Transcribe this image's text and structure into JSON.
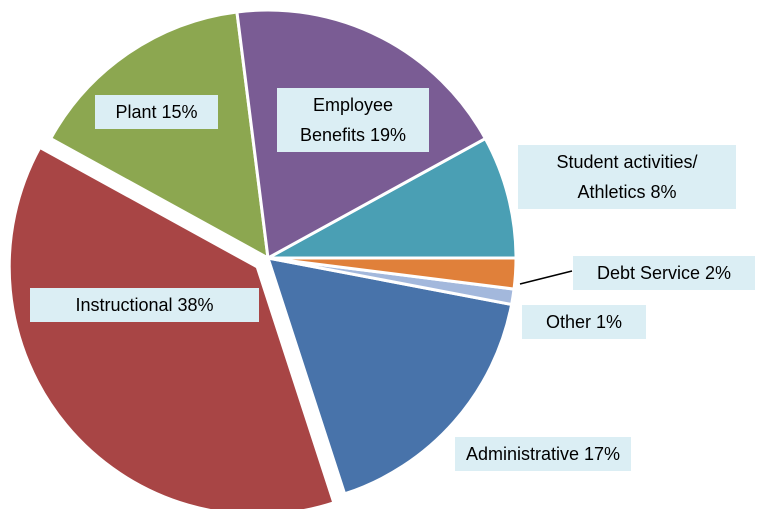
{
  "chart_data": {
    "type": "pie",
    "categories": [
      "Employee Benefits",
      "Student activities/ Athletics",
      "Debt Service",
      "Other",
      "Administrative",
      "Instructional",
      "Plant"
    ],
    "values": [
      19,
      8,
      2,
      1,
      17,
      38,
      15
    ],
    "value_labels": [
      "19%",
      "8%",
      "2%",
      "1%",
      "17%",
      "38%",
      "15%"
    ],
    "colors": [
      "#7a5c94",
      "#4a9fb4",
      "#e0803a",
      "#a3b8dc",
      "#4873aa",
      "#a84545",
      "#8ca750"
    ]
  }
}
